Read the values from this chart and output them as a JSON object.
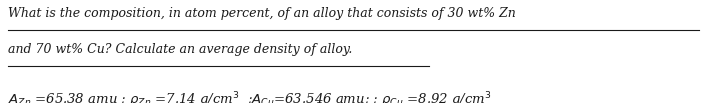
{
  "bg_color": "#f0f0f0",
  "panel_color": "#ffffff",
  "line1": "What is the composition, in atom percent, of an alloy that consists of 30 wt% Zn",
  "line2": "and 70 wt% Cu? Calculate an average density of alloy.",
  "formula": "$A_{Zn}$ =65.38 amu ; $\\rho_{Zn}$ =7.14 g/cm$^3$  ;$A_{Cu}$=63.546 amu; ; $\\rho_{Cu}$ =8.92 g/cm$^3$",
  "figsize": [
    7.01,
    1.03
  ],
  "dpi": 100,
  "text_color": "#1a1a1a",
  "underline_color": "#1a1a1a",
  "underline_lw": 0.8
}
